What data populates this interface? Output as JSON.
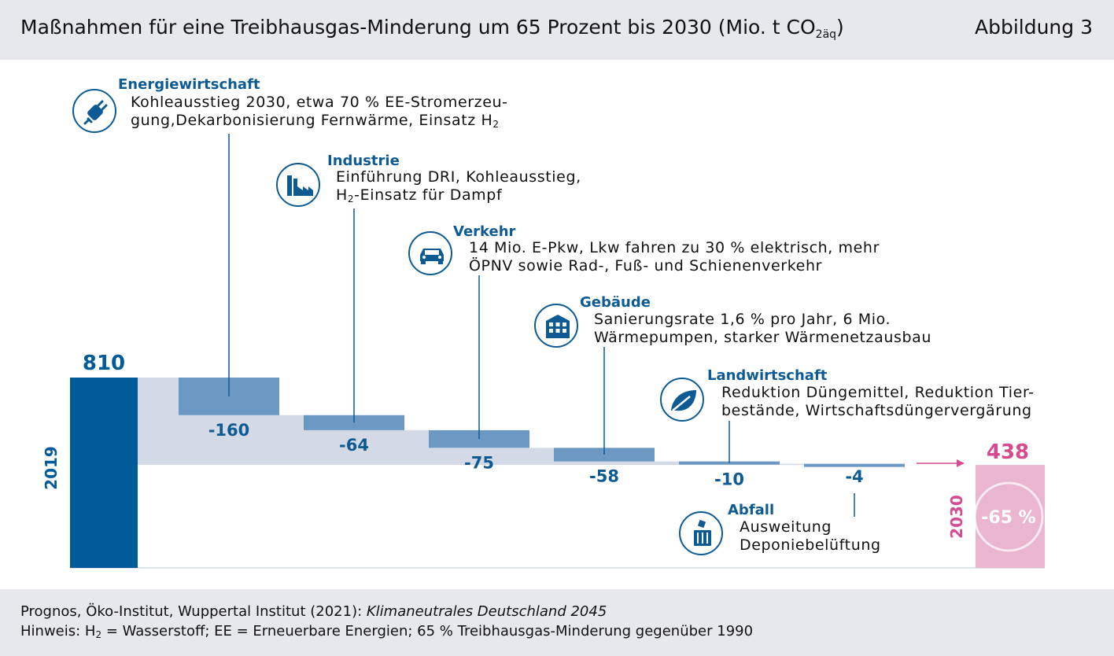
{
  "header": {
    "title": "Maßnahmen für eine Treibhausgas-Minderung um 65 Prozent bis 2030 (Mio. t CO",
    "title_sub": "2äq",
    "title_end": ")",
    "figure_label": "Abbildung 3"
  },
  "footer": {
    "source_prefix": "Prognos, Öko-Institut, Wuppertal Institut (2021): ",
    "source_title": "Klimaneutrales Deutschland 2045",
    "note_prefix": "Hinweis: H",
    "note_sub": "2",
    "note_rest": " = Wasserstoff; EE = Erneuerbare Energien; 65 % Treibhausgas-Minderung gegenüber 1990"
  },
  "colors": {
    "start_bar": "#005b98",
    "step_bar": "#6b99c4",
    "band": "#d3d9e5",
    "end_bar": "#e9b5cf",
    "end_text": "#d54b8d",
    "label_blue": "#0e5b94"
  },
  "chart_data": {
    "type": "waterfall",
    "start": {
      "label": "2019",
      "value": 810,
      "value_label": "810"
    },
    "end": {
      "label": "2030",
      "value": 438,
      "value_label": "438",
      "reduction_label": "-65 %"
    },
    "steps": [
      {
        "category": "Energiewirtschaft",
        "value": -160,
        "label": "-160",
        "desc_lines": [
          "Kohleausstieg 2030, etwa 70 % EE-Stromerzeu-",
          "gung,Dekarbonisierung Fernwärme, Einsatz H"
        ],
        "desc_sub": "2",
        "icon": "plug-icon"
      },
      {
        "category": "Industrie",
        "value": -64,
        "label": "-64",
        "desc_lines": [
          "Einführung DRI, Kohleausstieg,",
          "-Einsatz für Dampf"
        ],
        "desc_pre": "H",
        "desc_sub": "2",
        "icon": "factory-icon"
      },
      {
        "category": "Verkehr",
        "value": -75,
        "label": "-75",
        "desc_lines": [
          "14 Mio. E-Pkw, Lkw fahren zu 30 % elektrisch, mehr",
          "ÖPNV sowie Rad-, Fuß- und Schienenverkehr"
        ],
        "icon": "car-icon"
      },
      {
        "category": "Gebäude",
        "value": -58,
        "label": "-58",
        "desc_lines": [
          "Sanierungsrate 1,6 % pro Jahr, 6 Mio.",
          "Wärmepumpen, starker Wärmenetzausbau"
        ],
        "icon": "building-icon"
      },
      {
        "category": "Landwirtschaft",
        "value": -10,
        "label": "-10",
        "desc_lines": [
          "Reduktion Düngemittel, Reduktion Tier-",
          "bestände, Wirtschaftsdüngervergärung"
        ],
        "icon": "leaf-icon"
      },
      {
        "category": "Abfall",
        "value": -4,
        "label": "-4",
        "desc_lines": [
          "Ausweitung",
          "Deponiebelüftung"
        ],
        "icon": "trash-icon"
      }
    ]
  }
}
